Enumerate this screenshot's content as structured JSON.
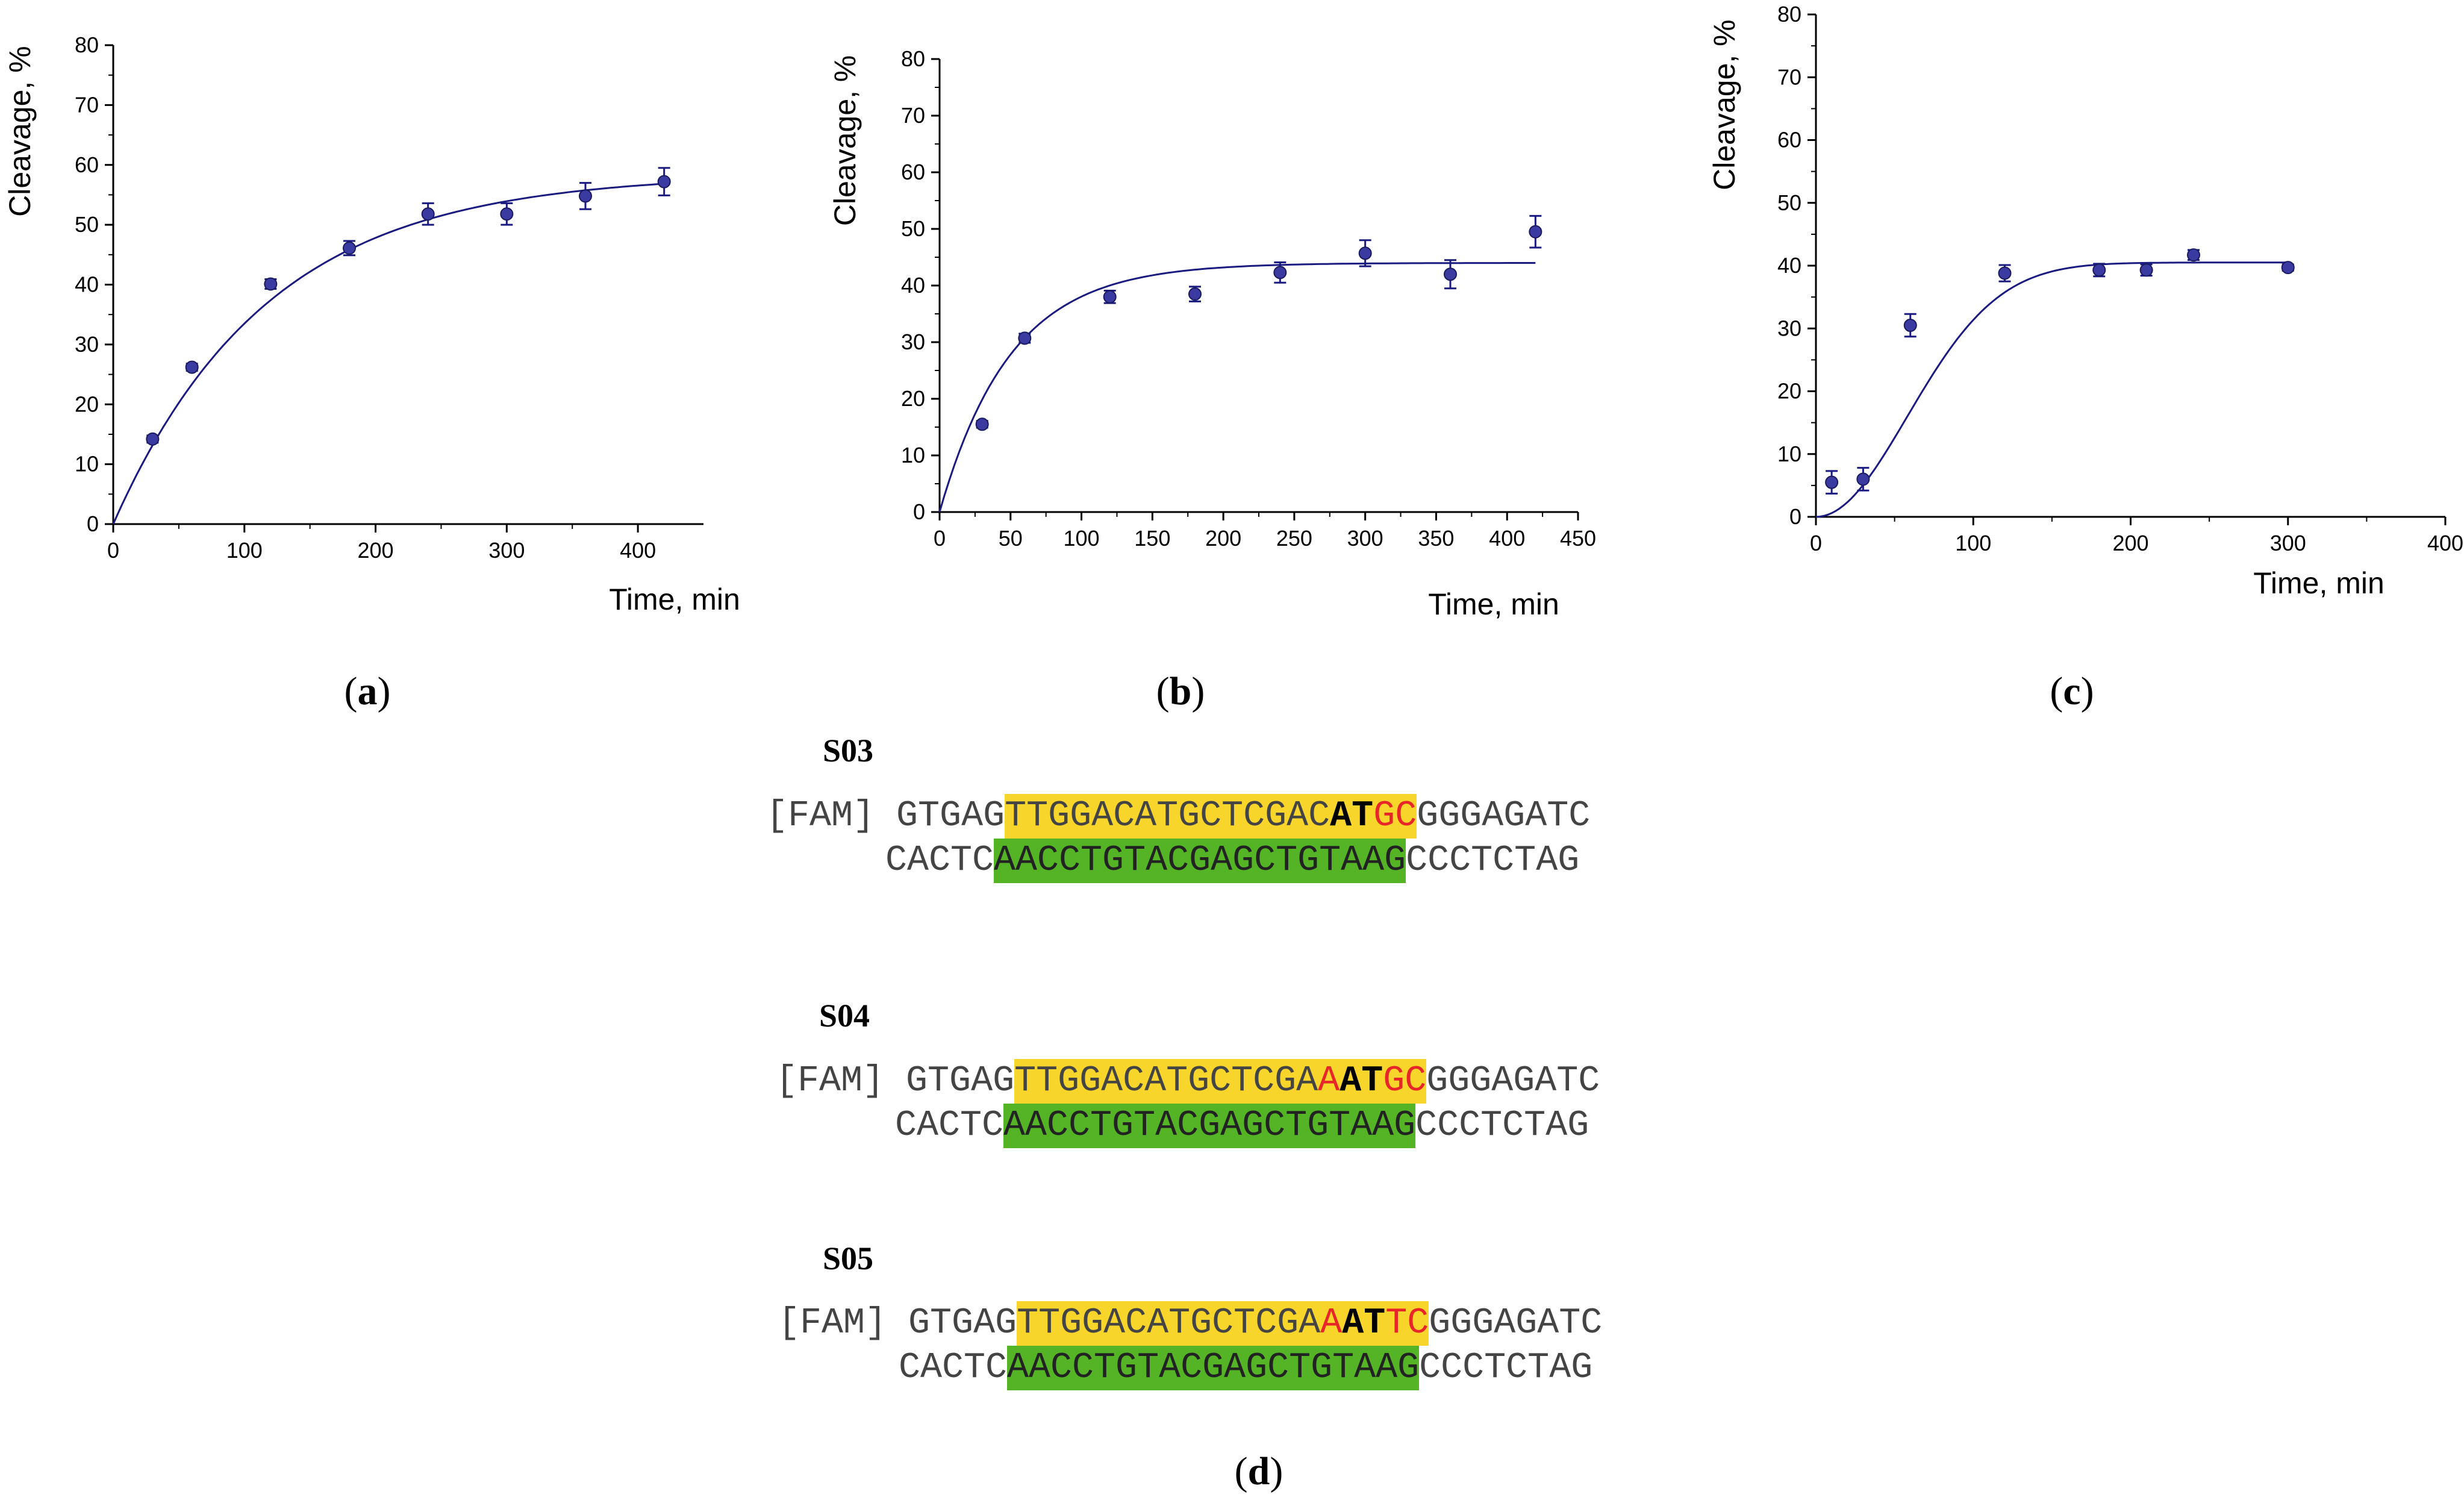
{
  "chart_data": [
    {
      "id": "a",
      "type": "scatter",
      "title": "",
      "xlabel": "Time, min",
      "ylabel": "Cleavage, %",
      "xlim": [
        0,
        450
      ],
      "ylim": [
        0,
        80
      ],
      "xticks": [
        0,
        100,
        200,
        300,
        400
      ],
      "yticks": [
        0,
        10,
        20,
        30,
        40,
        50,
        60,
        70,
        80
      ],
      "grid": false,
      "points": [
        {
          "x": 30,
          "y": 14.2,
          "err": 0.6
        },
        {
          "x": 60,
          "y": 26.2,
          "err": 0.6
        },
        {
          "x": 120,
          "y": 40.1,
          "err": 0.8
        },
        {
          "x": 180,
          "y": 46.1,
          "err": 1.2
        },
        {
          "x": 240,
          "y": 51.8,
          "err": 1.8
        },
        {
          "x": 300,
          "y": 51.8,
          "err": 1.8
        },
        {
          "x": 360,
          "y": 54.8,
          "err": 2.2
        },
        {
          "x": 420,
          "y": 57.2,
          "err": 2.3
        }
      ],
      "fit": {
        "model": "A*(1-exp(-k*t))",
        "A": 58.5,
        "k": 0.0085,
        "x_range": [
          0,
          420
        ]
      }
    },
    {
      "id": "b",
      "type": "scatter",
      "title": "",
      "xlabel": "Time, min",
      "ylabel": "Cleavage, %",
      "xlim": [
        0,
        450
      ],
      "ylim": [
        0,
        80
      ],
      "xticks": [
        0,
        50,
        100,
        150,
        200,
        250,
        300,
        350,
        400,
        450
      ],
      "yticks": [
        0,
        10,
        20,
        30,
        40,
        50,
        60,
        70,
        80
      ],
      "grid": false,
      "points": [
        {
          "x": 30,
          "y": 15.5,
          "err": 0.6
        },
        {
          "x": 60,
          "y": 30.7,
          "err": 0.8
        },
        {
          "x": 120,
          "y": 38.0,
          "err": 1.1
        },
        {
          "x": 180,
          "y": 38.5,
          "err": 1.3
        },
        {
          "x": 240,
          "y": 42.3,
          "err": 1.8
        },
        {
          "x": 300,
          "y": 45.7,
          "err": 2.3
        },
        {
          "x": 360,
          "y": 42.0,
          "err": 2.5
        },
        {
          "x": 420,
          "y": 49.5,
          "err": 2.8
        }
      ],
      "fit": {
        "model": "A*(1-exp(-k*t))",
        "A": 44.0,
        "k": 0.02,
        "x_range": [
          0,
          420
        ]
      }
    },
    {
      "id": "c",
      "type": "scatter",
      "title": "",
      "xlabel": "Time, min",
      "ylabel": "Cleavage, %",
      "xlim": [
        0,
        400
      ],
      "ylim": [
        0,
        80
      ],
      "xticks": [
        0,
        100,
        200,
        300,
        400
      ],
      "yticks": [
        0,
        10,
        20,
        30,
        40,
        50,
        60,
        70,
        80
      ],
      "grid": false,
      "points": [
        {
          "x": 10,
          "y": 5.5,
          "err": 1.8
        },
        {
          "x": 30,
          "y": 6.0,
          "err": 1.8
        },
        {
          "x": 60,
          "y": 30.5,
          "err": 1.8
        },
        {
          "x": 120,
          "y": 38.8,
          "err": 1.3
        },
        {
          "x": 180,
          "y": 39.3,
          "err": 1.0
        },
        {
          "x": 210,
          "y": 39.3,
          "err": 0.9
        },
        {
          "x": 240,
          "y": 41.7,
          "err": 0.8
        },
        {
          "x": 300,
          "y": 39.7,
          "err": 0.5
        }
      ],
      "fit": {
        "model": "A*(1-exp(-(k*t)^2))",
        "A": 40.5,
        "k": 0.0122,
        "x_range": [
          0,
          300
        ]
      }
    }
  ],
  "panel_labels": {
    "a": "a",
    "b": "b",
    "c": "c",
    "d": "d"
  },
  "sequences": [
    {
      "title": "S03",
      "top": {
        "prefix": "[FAM]",
        "flank_left": "GTGAG",
        "hl_plain": "TTGGACATGCTCGAC",
        "hl_mut_red": "",
        "hl_bold": "AT",
        "hl_red_end": "GC",
        "flank_right": "GGGAGATC"
      },
      "bottom": {
        "flank_left": "CACTC",
        "hl": "AACCTGTACGAGCTGTAAG",
        "flank_right": "CCCTCTAG"
      }
    },
    {
      "title": "S04",
      "top": {
        "prefix": "[FAM]",
        "flank_left": "GTGAG",
        "hl_plain": "TTGGACATGCTCGA",
        "hl_mut_red": "A",
        "hl_bold": "AT",
        "hl_red_end": "GC",
        "flank_right": "GGGAGATC"
      },
      "bottom": {
        "flank_left": "CACTC",
        "hl": "AACCTGTACGAGCTGTAAG",
        "flank_right": "CCCTCTAG"
      }
    },
    {
      "title": "S05",
      "top": {
        "prefix": "[FAM]",
        "flank_left": "GTGAG",
        "hl_plain": "TTGGACATGCTCGA",
        "hl_mut_red": "A",
        "hl_bold": "AT",
        "hl_red_end": "TC",
        "flank_right": "GGGAGATC"
      },
      "bottom": {
        "flank_left": "CACTC",
        "hl": "AACCTGTACGAGCTGTAAG",
        "flank_right": "CCCTCTAG"
      }
    }
  ],
  "colors": {
    "line": "#1a1a80",
    "marker": "#3a3aa0",
    "highlight_yellow": "#f8d52a",
    "highlight_green": "#55b426",
    "mutation_red": "#e8262a"
  }
}
